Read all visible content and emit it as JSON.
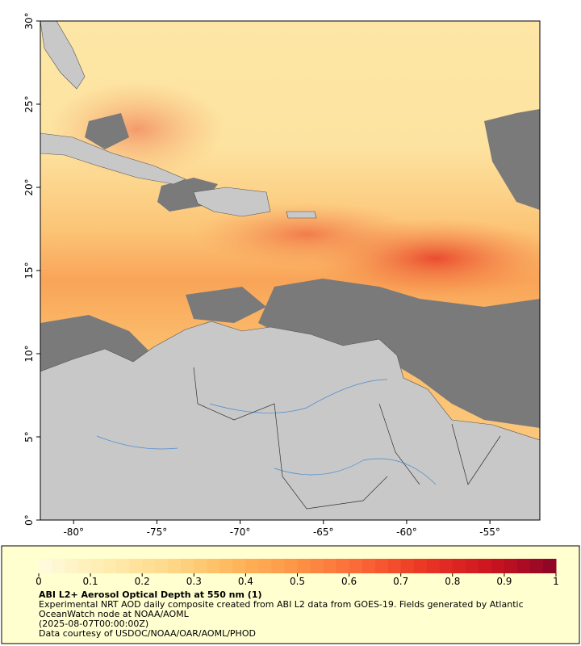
{
  "map": {
    "xlim": [
      -82,
      -52
    ],
    "ylim": [
      0,
      30
    ],
    "xticks": [
      {
        "value": -80,
        "label": "-80°"
      },
      {
        "value": -75,
        "label": "-75°"
      },
      {
        "value": -70,
        "label": "-70°"
      },
      {
        "value": -65,
        "label": "-65°"
      },
      {
        "value": -60,
        "label": "-60°"
      },
      {
        "value": -55,
        "label": "-55°"
      }
    ],
    "yticks": [
      {
        "value": 0,
        "label": "0°"
      },
      {
        "value": 5,
        "label": "5°"
      },
      {
        "value": 10,
        "label": "10°"
      },
      {
        "value": 15,
        "label": "15°"
      },
      {
        "value": 20,
        "label": "20°"
      },
      {
        "value": 25,
        "label": "25°"
      },
      {
        "value": 30,
        "label": "30°"
      }
    ]
  },
  "colorbar": {
    "lim": [
      0,
      1
    ],
    "ticks": [
      0,
      0.1,
      0.2,
      0.3,
      0.4,
      0.5,
      0.6,
      0.7,
      0.8,
      0.9,
      1
    ],
    "colors": [
      "#fffbe0",
      "#ffedb0",
      "#fed98a",
      "#feb85c",
      "#fd9446",
      "#fb6636",
      "#ea3424",
      "#cc1420",
      "#8a0426"
    ]
  },
  "caption": {
    "title": "ABI L2+ Aerosol Optical Depth at 550 nm (1)",
    "description": "Experimental NRT AOD daily composite created from ABI L2 data from GOES-19. Fields generated by Atlantic OceanWatch node at NOAA/AOML",
    "date": "(2025-08-07T00:00:00Z)",
    "credit": "Data courtesy of USDOC/NOAA/OAR/AOML/PHOD"
  }
}
